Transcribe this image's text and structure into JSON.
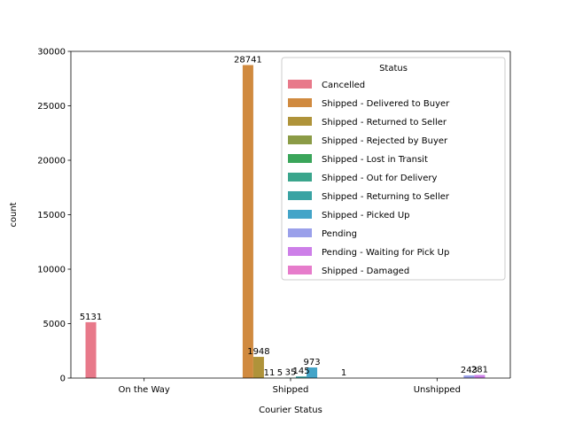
{
  "chart_data": {
    "type": "bar",
    "title": "",
    "xlabel": "Courier Status",
    "ylabel": "count",
    "categories": [
      "On the Way",
      "Shipped",
      "Unshipped"
    ],
    "ylim": [
      0,
      30000
    ],
    "yticks": [
      0,
      5000,
      10000,
      15000,
      20000,
      25000,
      30000
    ],
    "grid": false,
    "legend": {
      "title": "Status",
      "placement": "top-right"
    },
    "series": [
      {
        "name": "Cancelled",
        "color": "#e8798a",
        "values": [
          5131,
          null,
          null
        ]
      },
      {
        "name": "Shipped - Delivered to Buyer",
        "color": "#d08a3f",
        "values": [
          null,
          28741,
          null
        ]
      },
      {
        "name": "Shipped - Returned to Seller",
        "color": "#af933a",
        "values": [
          null,
          1948,
          null
        ]
      },
      {
        "name": "Shipped - Rejected by Buyer",
        "color": "#8b9b46",
        "values": [
          null,
          11,
          null
        ]
      },
      {
        "name": "Shipped - Lost in Transit",
        "color": "#3aa55a",
        "values": [
          null,
          5,
          null
        ]
      },
      {
        "name": "Shipped - Out for Delivery",
        "color": "#3aa58c",
        "values": [
          null,
          35,
          null
        ]
      },
      {
        "name": "Shipped - Returning to Seller",
        "color": "#3aa3a3",
        "values": [
          null,
          145,
          null
        ]
      },
      {
        "name": "Shipped - Picked Up",
        "color": "#43a4c8",
        "values": [
          null,
          973,
          null
        ]
      },
      {
        "name": "Pending",
        "color": "#9aa0ea",
        "values": [
          null,
          null,
          243
        ]
      },
      {
        "name": "Pending - Waiting for Pick Up",
        "color": "#cd7fe8",
        "values": [
          null,
          null,
          281
        ]
      },
      {
        "name": "Shipped - Damaged",
        "color": "#e67ccb",
        "values": [
          null,
          1,
          null
        ]
      }
    ]
  }
}
